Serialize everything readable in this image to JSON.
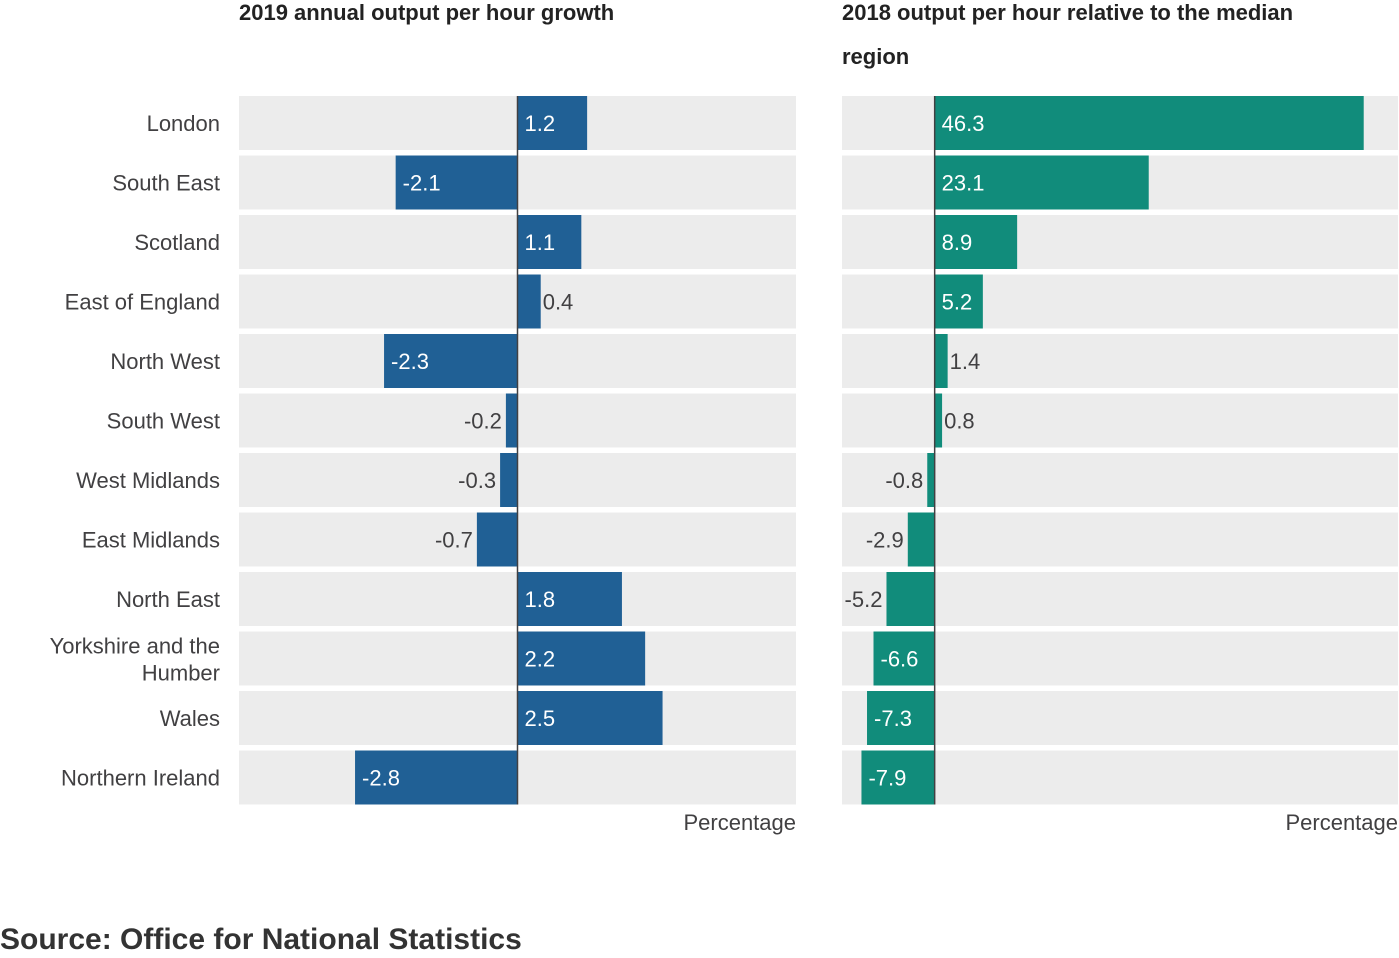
{
  "source": "Source: Office for National Statistics",
  "colors": {
    "left_bar": "#206095",
    "right_bar": "#118c7b",
    "track": "#ececec",
    "zero_line": "#414042",
    "label_dark": "#414042",
    "label_light": "#ffffff"
  },
  "chart_data": [
    {
      "type": "bar",
      "orientation": "horizontal",
      "title": "2019 annual output per hour growth",
      "xlabel": "Percentage",
      "ylabel": "",
      "xlim": [
        -4.8,
        4.8
      ],
      "grid": false,
      "categories": [
        "London",
        "South East",
        "Scotland",
        "East of England",
        "North West",
        "South West",
        "West Midlands",
        "East Midlands",
        "North East",
        "Yorkshire and the Humber",
        "Wales",
        "Northern Ireland"
      ],
      "values": [
        1.2,
        -2.1,
        1.1,
        0.4,
        -2.3,
        -0.2,
        -0.3,
        -0.7,
        1.8,
        2.2,
        2.5,
        -2.8
      ]
    },
    {
      "type": "bar",
      "orientation": "horizontal",
      "title": "2018 output per hour relative to the median region",
      "xlabel": "Percentage",
      "ylabel": "",
      "xlim": [
        -10,
        50
      ],
      "grid": false,
      "categories": [
        "London",
        "South East",
        "Scotland",
        "East of England",
        "North West",
        "South West",
        "West Midlands",
        "East Midlands",
        "North East",
        "Yorkshire and the Humber",
        "Wales",
        "Northern Ireland"
      ],
      "values": [
        46.3,
        23.1,
        8.9,
        5.2,
        1.4,
        0.8,
        -0.8,
        -2.9,
        -5.2,
        -6.6,
        -7.3,
        -7.9
      ]
    }
  ]
}
